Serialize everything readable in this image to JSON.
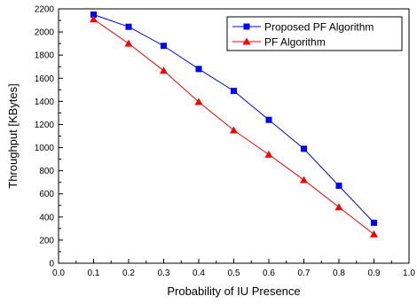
{
  "chart_data": {
    "type": "line",
    "title": "",
    "xlabel": "Probability of IU Presence",
    "ylabel": "Throughput [KBytes]",
    "xlim": [
      0.0,
      1.0
    ],
    "ylim": [
      0,
      2200
    ],
    "xticks": [
      "0.0",
      "0.1",
      "0.2",
      "0.3",
      "0.4",
      "0.5",
      "0.6",
      "0.7",
      "0.8",
      "0.9",
      "1.0"
    ],
    "yticks": [
      "0",
      "200",
      "400",
      "600",
      "800",
      "1000",
      "1200",
      "1400",
      "1600",
      "1800",
      "2000",
      "2200"
    ],
    "grid": false,
    "legend_position": "top-right",
    "x": [
      0.1,
      0.2,
      0.3,
      0.4,
      0.5,
      0.6,
      0.7,
      0.8,
      0.9
    ],
    "series": [
      {
        "name": "Proposed PF Algorithm",
        "color": "#0000ff",
        "marker": "square",
        "values": [
          2150,
          2045,
          1880,
          1680,
          1490,
          1240,
          990,
          670,
          350
        ]
      },
      {
        "name": "PF Algorithm",
        "color": "#ff0000",
        "marker": "triangle",
        "values": [
          2110,
          1900,
          1665,
          1395,
          1150,
          940,
          720,
          485,
          250
        ]
      }
    ]
  }
}
